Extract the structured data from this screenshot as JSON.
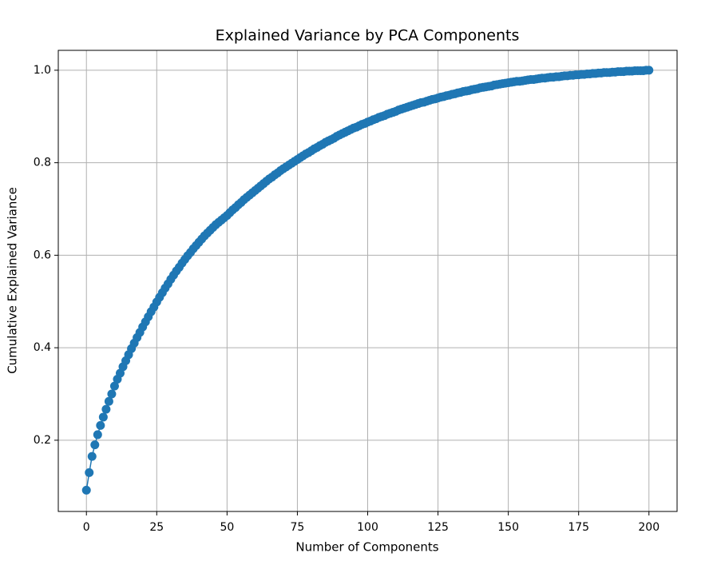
{
  "chart_data": {
    "type": "line",
    "title": "Explained Variance by PCA Components",
    "x_label": "Number of Components",
    "y_label": "Cumulative Explained Variance",
    "color": "#1f77b4",
    "markers": true,
    "grid": true,
    "xlim": [
      -10,
      210
    ],
    "xticks": [
      0,
      25,
      50,
      75,
      100,
      125,
      150,
      175,
      200
    ],
    "ylim": [
      0.046,
      1.043
    ],
    "yticks": [
      0.2,
      0.4,
      0.6,
      0.8,
      {
        "value": 1,
        "label": "1.0"
      }
    ],
    "x": [
      0,
      1,
      2,
      3,
      4,
      5,
      6,
      7,
      8,
      9,
      10,
      11,
      12,
      13,
      14,
      15,
      16,
      17,
      18,
      19,
      20,
      21,
      22,
      23,
      24,
      25,
      26,
      27,
      28,
      29,
      30,
      31,
      32,
      33,
      34,
      35,
      36,
      37,
      38,
      39,
      40,
      41,
      42,
      43,
      44,
      45,
      46,
      47,
      48,
      49,
      50,
      51,
      52,
      53,
      54,
      55,
      56,
      57,
      58,
      59,
      60,
      61,
      62,
      63,
      64,
      65,
      66,
      67,
      68,
      69,
      70,
      71,
      72,
      73,
      74,
      75,
      76,
      77,
      78,
      79,
      80,
      81,
      82,
      83,
      84,
      85,
      86,
      87,
      88,
      89,
      90,
      91,
      92,
      93,
      94,
      95,
      96,
      97,
      98,
      99,
      100,
      101,
      102,
      103,
      104,
      105,
      106,
      107,
      108,
      109,
      110,
      111,
      112,
      113,
      114,
      115,
      116,
      117,
      118,
      119,
      120,
      121,
      122,
      123,
      124,
      125,
      126,
      127,
      128,
      129,
      130,
      131,
      132,
      133,
      134,
      135,
      136,
      137,
      138,
      139,
      140,
      141,
      142,
      143,
      144,
      145,
      146,
      147,
      148,
      149,
      150,
      151,
      152,
      153,
      154,
      155,
      156,
      157,
      158,
      159,
      160,
      161,
      162,
      163,
      164,
      165,
      166,
      167,
      168,
      169,
      170,
      171,
      172,
      173,
      174,
      175,
      176,
      177,
      178,
      179,
      180,
      181,
      182,
      183,
      184,
      185,
      186,
      187,
      188,
      189,
      190,
      191,
      192,
      193,
      194,
      195,
      196,
      197,
      198,
      199,
      200
    ],
    "values": [
      0.092,
      0.13,
      0.165,
      0.19,
      0.212,
      0.232,
      0.25,
      0.267,
      0.284,
      0.3,
      0.317,
      0.332,
      0.345,
      0.359,
      0.372,
      0.385,
      0.398,
      0.41,
      0.422,
      0.433,
      0.445,
      0.456,
      0.467,
      0.478,
      0.488,
      0.499,
      0.509,
      0.519,
      0.529,
      0.538,
      0.548,
      0.557,
      0.566,
      0.574,
      0.583,
      0.591,
      0.599,
      0.606,
      0.614,
      0.621,
      0.628,
      0.635,
      0.642,
      0.648,
      0.654,
      0.66,
      0.666,
      0.671,
      0.676,
      0.681,
      0.686,
      0.692,
      0.698,
      0.703,
      0.709,
      0.714,
      0.72,
      0.725,
      0.73,
      0.735,
      0.74,
      0.745,
      0.75,
      0.755,
      0.76,
      0.765,
      0.769,
      0.774,
      0.778,
      0.783,
      0.787,
      0.791,
      0.795,
      0.799,
      0.803,
      0.807,
      0.811,
      0.815,
      0.819,
      0.822,
      0.826,
      0.83,
      0.833,
      0.837,
      0.84,
      0.844,
      0.847,
      0.85,
      0.853,
      0.857,
      0.86,
      0.863,
      0.866,
      0.869,
      0.872,
      0.875,
      0.877,
      0.88,
      0.883,
      0.885,
      0.888,
      0.89,
      0.893,
      0.895,
      0.898,
      0.9,
      0.902,
      0.905,
      0.907,
      0.909,
      0.911,
      0.914,
      0.916,
      0.918,
      0.92,
      0.922,
      0.924,
      0.926,
      0.928,
      0.93,
      0.931,
      0.933,
      0.935,
      0.937,
      0.938,
      0.94,
      0.942,
      0.943,
      0.945,
      0.946,
      0.948,
      0.949,
      0.951,
      0.952,
      0.954,
      0.955,
      0.956,
      0.958,
      0.959,
      0.96,
      0.962,
      0.963,
      0.964,
      0.965,
      0.966,
      0.968,
      0.969,
      0.97,
      0.971,
      0.972,
      0.973,
      0.974,
      0.975,
      0.976,
      0.976,
      0.977,
      0.978,
      0.979,
      0.98,
      0.98,
      0.981,
      0.982,
      0.983,
      0.983,
      0.984,
      0.985,
      0.985,
      0.986,
      0.986,
      0.987,
      0.988,
      0.988,
      0.989,
      0.989,
      0.99,
      0.99,
      0.991,
      0.991,
      0.992,
      0.992,
      0.993,
      0.993,
      0.994,
      0.994,
      0.995,
      0.995,
      0.995,
      0.996,
      0.996,
      0.997,
      0.997,
      0.997,
      0.998,
      0.998,
      0.998,
      0.999,
      0.999,
      0.999,
      0.999,
      1.0,
      1.0
    ]
  }
}
